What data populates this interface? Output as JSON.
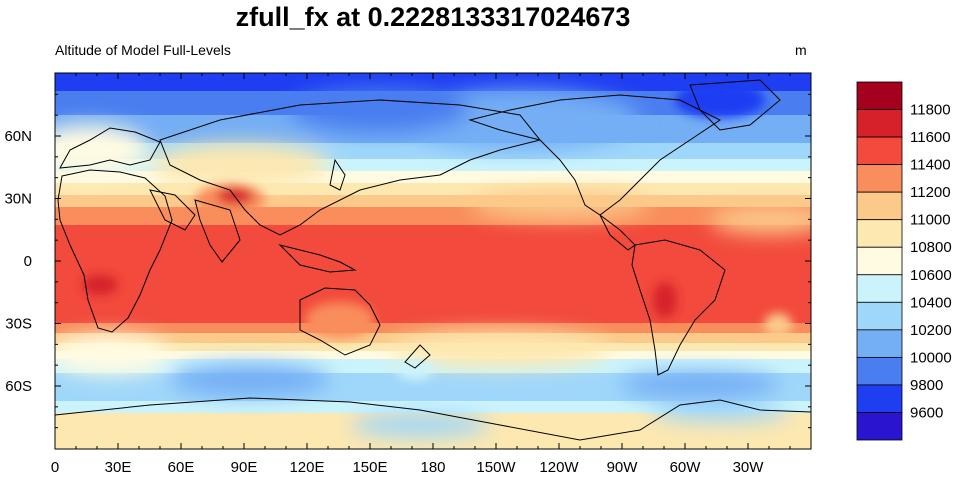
{
  "title": "zfull_fx at 0.2228133317024673",
  "left_string": "Altitude of Model Full-Levels",
  "right_string": "m",
  "colors": {
    "levels": [
      "#2b14d0",
      "#1f3ef2",
      "#4a7ef0",
      "#74aef5",
      "#9fd7fa",
      "#cbf3fb",
      "#fffbe2",
      "#fde8b0",
      "#fbc98a",
      "#f98d5c",
      "#f24a3c",
      "#d6202a",
      "#a5001e"
    ],
    "land_outline": "#000000"
  },
  "colorbar": {
    "labels": [
      "11800",
      "11600",
      "11400",
      "11200",
      "11000",
      "10800",
      "10600",
      "10400",
      "10200",
      "10000",
      "9800",
      "9600"
    ]
  },
  "axes": {
    "x_ticks": [
      "0",
      "30E",
      "60E",
      "90E",
      "120E",
      "150E",
      "180",
      "150W",
      "120W",
      "90W",
      "60W",
      "30W"
    ],
    "y_ticks": [
      "60N",
      "30N",
      "0",
      "30S",
      "60S"
    ]
  }
}
